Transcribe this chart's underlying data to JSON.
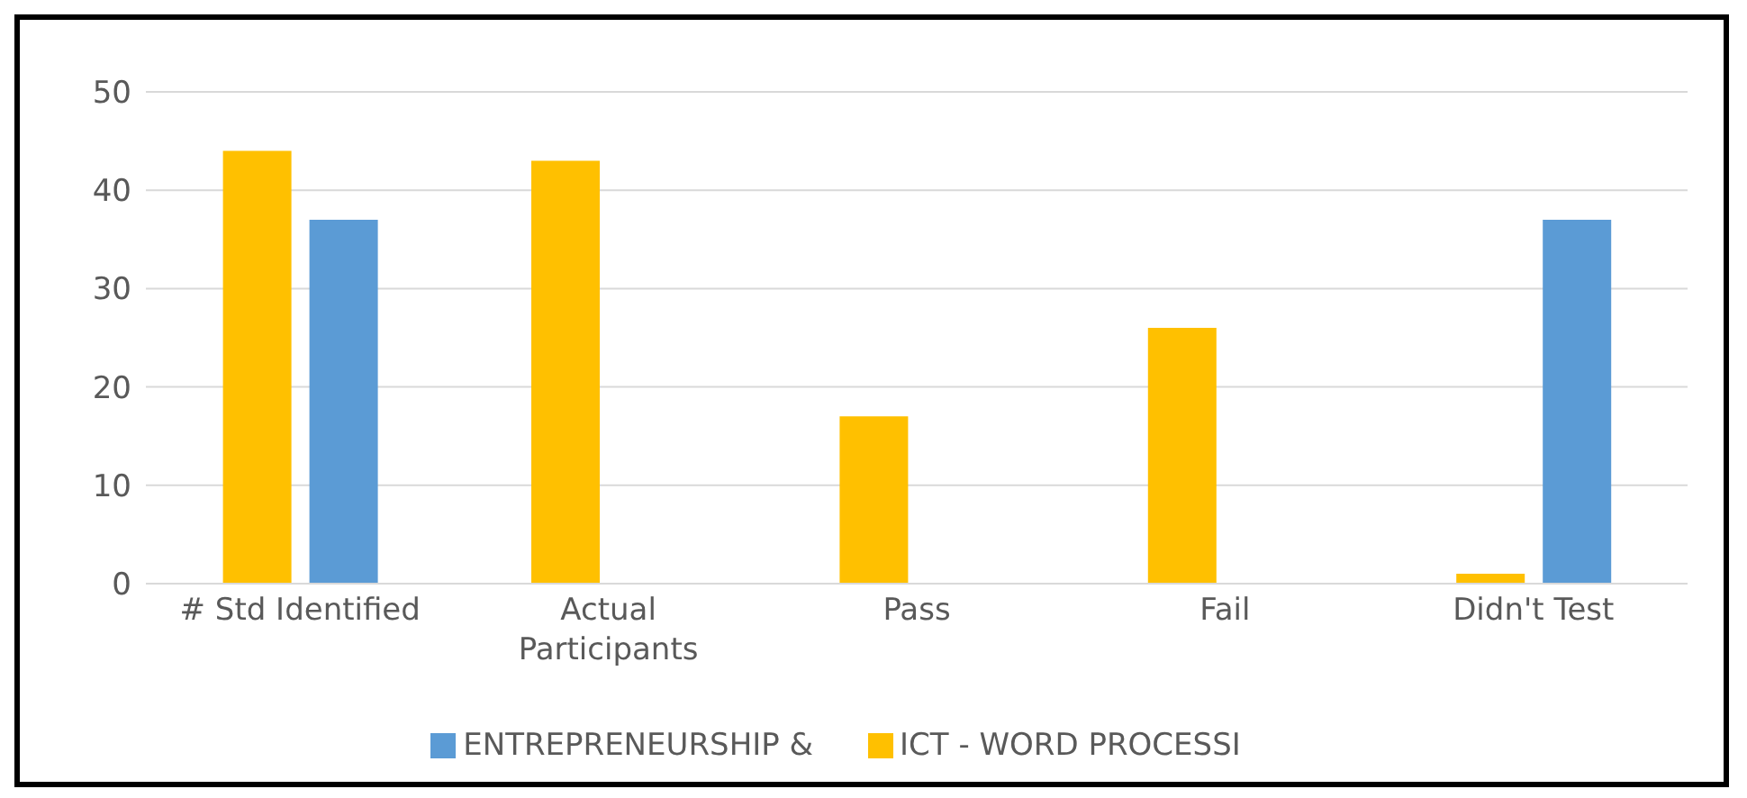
{
  "chart_data": {
    "type": "bar",
    "categories": [
      "# Std Identified",
      "Actual Participants",
      "Pass",
      "Fail",
      "Didn't Test"
    ],
    "series": [
      {
        "name": "ICT - WORD PROCESSI",
        "color": "#ffc000",
        "values": [
          44,
          43,
          17,
          26,
          1
        ]
      },
      {
        "name": "ENTREPRENEURSHIP &",
        "color": "#5b9bd5",
        "values": [
          37,
          null,
          null,
          null,
          37
        ]
      }
    ],
    "ylim": [
      0,
      50
    ],
    "yticks": [
      0,
      10,
      20,
      30,
      40,
      50
    ],
    "grid": "y",
    "legend": "bottom"
  }
}
